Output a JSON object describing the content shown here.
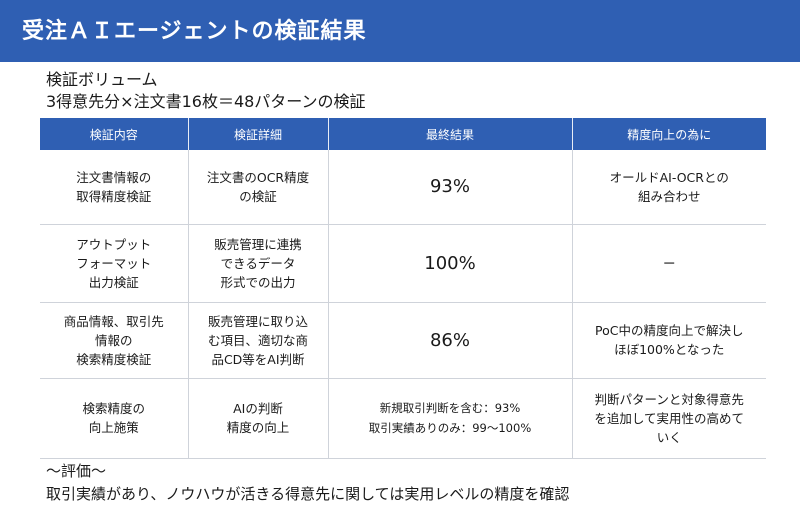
{
  "header": {
    "title": "受注ＡＩエージェントの検証結果"
  },
  "volume": {
    "heading": "検証ボリューム",
    "detail": "3得意先分×注文書16枚＝48パターンの検証"
  },
  "table": {
    "columns": [
      "検証内容",
      "検証詳細",
      "最終結果",
      "精度向上の為に"
    ],
    "rows": [
      {
        "content": "注文書情報の\n取得精度検証",
        "detail": "注文書のOCR精度\nの検証",
        "result": "93%",
        "improvement": "オールドAI-OCRとの\n組み合わせ"
      },
      {
        "content": "アウトプット\nフォーマット\n出力検証",
        "detail": "販売管理に連携\nできるデータ\n形式での出力",
        "result": "100%",
        "improvement": "ー"
      },
      {
        "content": "商品情報、取引先\n情報の\n検索精度検証",
        "detail": "販売管理に取り込\nむ項目、適切な商\n品CD等をAI判断",
        "result": "86%",
        "improvement": "PoC中の精度向上で解決し\nほぼ100%となった"
      },
      {
        "content": "検索精度の\n向上施策",
        "detail": "AIの判断\n精度の向上",
        "result": "新規取引判断を含む：93%\n取引実績ありのみ：99～100%",
        "improvement": "判断パターンと対象得意先\nを追加して実用性の高めて\nいく"
      }
    ]
  },
  "evaluation": {
    "heading": "～評価～",
    "summary": "取引実績があり、ノウハウが活きる得意先に関しては実用レベルの精度を確認"
  }
}
